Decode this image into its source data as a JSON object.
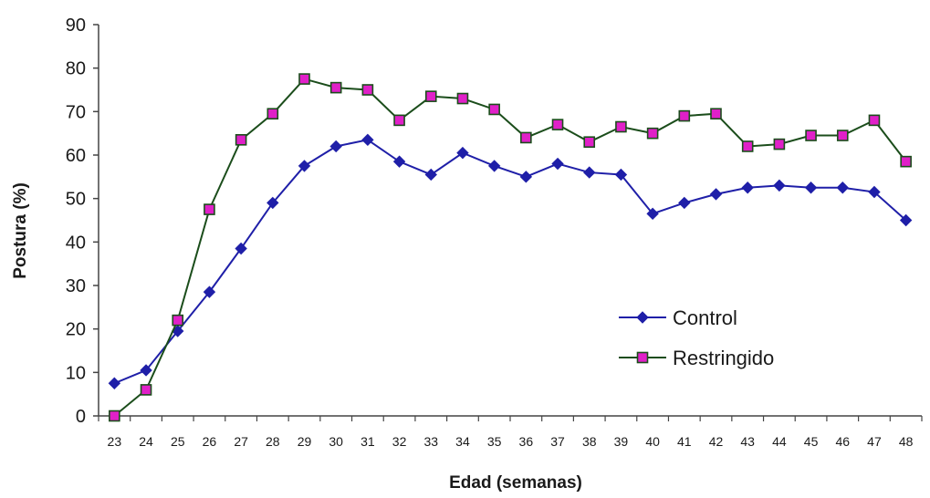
{
  "chart_data": {
    "type": "line",
    "xlabel": "Edad (semanas)",
    "ylabel": "Postura (%)",
    "ylim": [
      0,
      90
    ],
    "yticks": [
      0,
      10,
      20,
      30,
      40,
      50,
      60,
      70,
      80,
      90
    ],
    "grid": false,
    "legend_position": "right",
    "categories": [
      "23",
      "24",
      "25",
      "26",
      "27",
      "28",
      "29",
      "30",
      "31",
      "32",
      "33",
      "34",
      "35",
      "36",
      "37",
      "38",
      "39",
      "40",
      "41",
      "42",
      "43",
      "44",
      "45",
      "46",
      "47",
      "48"
    ],
    "series": [
      {
        "name": "Control",
        "color": "#1f1fa8",
        "marker": "diamond",
        "values": [
          7.5,
          10.5,
          19.5,
          28.5,
          38.5,
          49,
          57.5,
          62,
          63.5,
          58.5,
          55.5,
          60.5,
          57.5,
          55,
          58,
          56,
          55.5,
          46.5,
          49,
          51,
          52.5,
          53,
          52.5,
          52.5,
          51.5,
          45
        ]
      },
      {
        "name": "Restringido",
        "color": "#1b4d1b",
        "marker": "square",
        "marker_fill": "#e020c8",
        "values": [
          0,
          6,
          22,
          47.5,
          63.5,
          69.5,
          77.5,
          75.5,
          75,
          68,
          73.5,
          73,
          70.5,
          64,
          67,
          63,
          66.5,
          65,
          69,
          69.5,
          62,
          62.5,
          64.5,
          64.5,
          68,
          58.5
        ]
      }
    ]
  }
}
